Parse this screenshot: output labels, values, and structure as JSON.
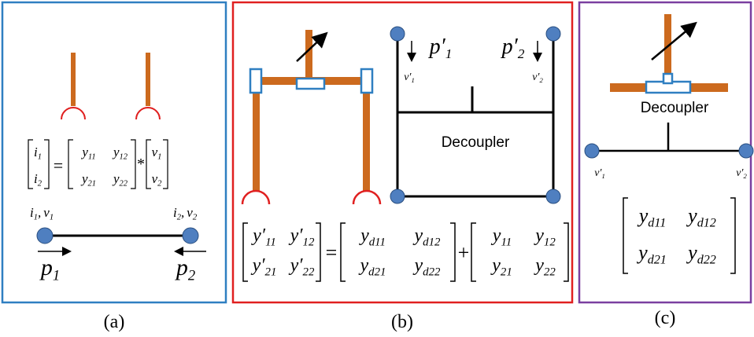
{
  "panels": {
    "a": {
      "caption": "(a)",
      "equation": {
        "lhs": [
          {
            "base": "i",
            "sub": "1"
          },
          {
            "base": "i",
            "sub": "2"
          }
        ],
        "equals": "=",
        "matrix": [
          [
            {
              "base": "y",
              "sub": "11"
            },
            {
              "base": "y",
              "sub": "12"
            }
          ],
          [
            {
              "base": "y",
              "sub": "21"
            },
            {
              "base": "y",
              "sub": "22"
            }
          ]
        ],
        "times": "*",
        "rhs": [
          {
            "base": "v",
            "sub": "1"
          },
          {
            "base": "v",
            "sub": "2"
          }
        ]
      },
      "port1": {
        "current": {
          "base": "i",
          "sub": "1"
        },
        "separator": ",",
        "voltage": {
          "base": "v",
          "sub": "1"
        },
        "power": {
          "base": "p",
          "sub": "1"
        }
      },
      "port2": {
        "current": {
          "base": "i",
          "sub": "2"
        },
        "separator": ",",
        "voltage": {
          "base": "v",
          "sub": "2"
        },
        "power": {
          "base": "p",
          "sub": "2"
        }
      }
    },
    "b": {
      "caption": "(b)",
      "decoupler": "Decoupler",
      "port1": {
        "power": {
          "base": "p′",
          "sub": "1"
        },
        "voltage": {
          "base": "v′",
          "sub": "1"
        }
      },
      "port2": {
        "power": {
          "base": "p′",
          "sub": "2"
        },
        "voltage": {
          "base": "v′",
          "sub": "2"
        }
      },
      "equation": {
        "result": [
          [
            {
              "base": "y′",
              "sub": "11"
            },
            {
              "base": "y′",
              "sub": "12"
            }
          ],
          [
            {
              "base": "y′",
              "sub": "21"
            },
            {
              "base": "y′",
              "sub": "22"
            }
          ]
        ],
        "equals": "=",
        "decoupler_matrix": [
          [
            {
              "base": "y",
              "sub": "d11"
            },
            {
              "base": "y",
              "sub": "d12"
            }
          ],
          [
            {
              "base": "y",
              "sub": "d21"
            },
            {
              "base": "y",
              "sub": "d22"
            }
          ]
        ],
        "plus": "+",
        "matrix": [
          [
            {
              "base": "y",
              "sub": "11"
            },
            {
              "base": "y",
              "sub": "12"
            }
          ],
          [
            {
              "base": "y",
              "sub": "21"
            },
            {
              "base": "y",
              "sub": "22"
            }
          ]
        ]
      }
    },
    "c": {
      "caption": "(c)",
      "decoupler": "Decoupler",
      "port1": {
        "voltage": {
          "base": "v′",
          "sub": "1"
        }
      },
      "port2": {
        "voltage": {
          "base": "v′",
          "sub": "2"
        }
      },
      "matrix": [
        [
          {
            "base": "y",
            "sub": "d11"
          },
          {
            "base": "y",
            "sub": "d12"
          }
        ],
        [
          {
            "base": "y",
            "sub": "d21"
          },
          {
            "base": "y",
            "sub": "d22"
          }
        ]
      ]
    }
  }
}
